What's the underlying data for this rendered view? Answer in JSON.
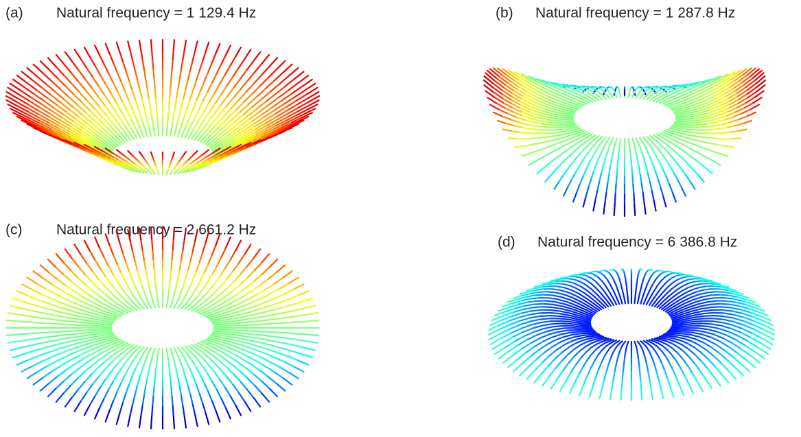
{
  "panels": [
    {
      "label": "(a)",
      "caption": "Natural frequency = 1 129.4 Hz"
    },
    {
      "label": "(b)",
      "caption": "Natural frequency = 1 287.8 Hz"
    },
    {
      "label": "(c)",
      "caption": "Natural frequency = 2 661.2 Hz"
    },
    {
      "label": "(d)",
      "caption": "Natural frequency = 6 386.8 Hz"
    }
  ]
}
